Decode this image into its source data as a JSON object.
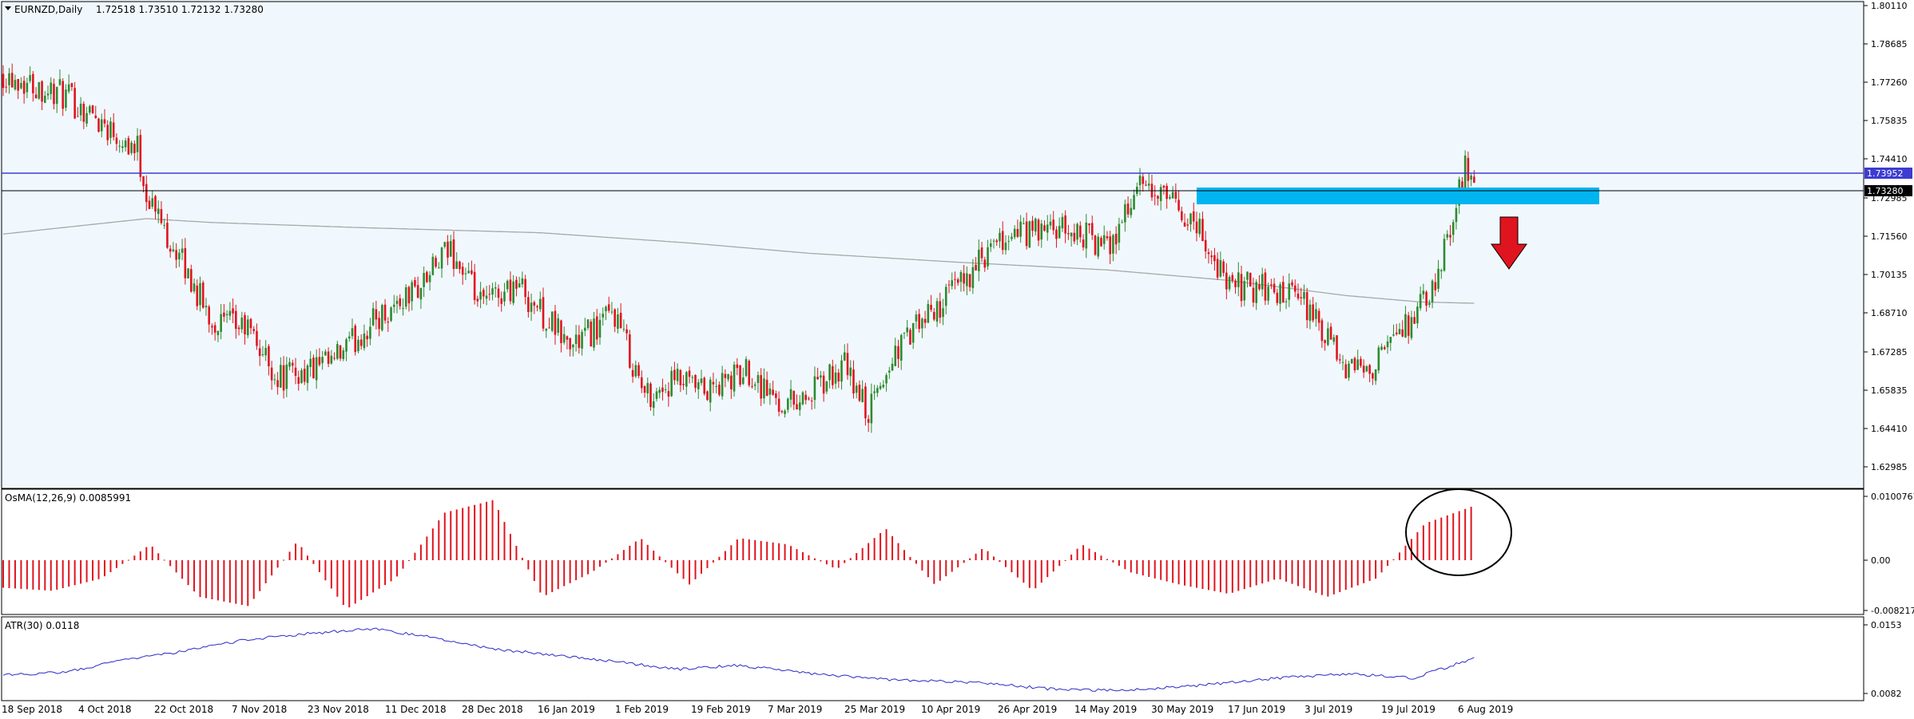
{
  "colors": {
    "background": "#f0f8fe",
    "frame": "#000000",
    "bull": "#2e8b2e",
    "bear": "#e0141e",
    "ma": "#a8a8a8",
    "atr": "#2929c8",
    "osma": "#e0141e",
    "blue_line": "#3c3cd2",
    "zone": "#00b4f0",
    "arrow": "#e0141e"
  },
  "main": {
    "title": "EURNZD,Daily",
    "ohlc": "1.72518 1.73510 1.72132 1.73280",
    "price_min": 1.6212,
    "price_max": 1.8011,
    "price_ticks": [
      "1.80110",
      "1.78685",
      "1.77260",
      "1.75835",
      "1.74410",
      "1.72985",
      "1.71560",
      "1.70135",
      "1.68710",
      "1.67285",
      "1.65835",
      "1.64410",
      "1.62985"
    ],
    "price_tag_blue": "1.73952",
    "price_tag_current": "1.73280"
  },
  "osma": {
    "label": "OsMA(12,26,9) 0.0085991",
    "ticks": [
      "0.0100767",
      "0.00",
      "-0.0082174"
    ],
    "min": -0.0082174,
    "max": 0.0100767
  },
  "atr": {
    "label": "ATR(30) 0.0118",
    "ticks": [
      "0.0153",
      "0.0082"
    ],
    "min": 0.0082,
    "max": 0.0153
  },
  "x_axis": {
    "labels": [
      "18 Sep 2018",
      "4 Oct 2018",
      "22 Oct 2018",
      "7 Nov 2018",
      "23 Nov 2018",
      "11 Dec 2018",
      "28 Dec 2018",
      "16 Jan 2019",
      "1 Feb 2019",
      "19 Feb 2019",
      "7 Mar 2019",
      "25 Mar 2019",
      "10 Apr 2019",
      "26 Apr 2019",
      "14 May 2019",
      "30 May 2019",
      "17 Jun 2019",
      "3 Jul 2019",
      "19 Jul 2019",
      "6 Aug 2019"
    ]
  },
  "chart_data": {
    "type": "candlestick",
    "symbol": "EURNZD",
    "timeframe": "Daily",
    "close_trend": [
      [
        0,
        1.775
      ],
      [
        20,
        1.766
      ],
      [
        32,
        1.757
      ],
      [
        45,
        1.745
      ],
      [
        48,
        1.728
      ],
      [
        58,
        1.705
      ],
      [
        70,
        1.678
      ],
      [
        82,
        1.675
      ],
      [
        92,
        1.656
      ],
      [
        110,
        1.661
      ],
      [
        124,
        1.678
      ],
      [
        140,
        1.692
      ],
      [
        150,
        1.706
      ],
      [
        160,
        1.684
      ],
      [
        172,
        1.693
      ],
      [
        190,
        1.668
      ],
      [
        205,
        1.681
      ],
      [
        215,
        1.649
      ],
      [
        226,
        1.654
      ],
      [
        236,
        1.65
      ],
      [
        250,
        1.659
      ],
      [
        260,
        1.646
      ],
      [
        270,
        1.649
      ],
      [
        282,
        1.66
      ],
      [
        290,
        1.642
      ],
      [
        300,
        1.668
      ],
      [
        312,
        1.682
      ],
      [
        324,
        1.697
      ],
      [
        338,
        1.712
      ],
      [
        352,
        1.713
      ],
      [
        362,
        1.712
      ],
      [
        370,
        1.706
      ],
      [
        380,
        1.73
      ],
      [
        390,
        1.725
      ],
      [
        400,
        1.716
      ],
      [
        410,
        1.692
      ],
      [
        422,
        1.691
      ],
      [
        436,
        1.685
      ],
      [
        446,
        1.666
      ],
      [
        450,
        1.658
      ],
      [
        460,
        1.662
      ],
      [
        470,
        1.676
      ],
      [
        480,
        1.69
      ],
      [
        486,
        1.721
      ],
      [
        490,
        1.737
      ],
      [
        493,
        1.728
      ]
    ],
    "moving_average_trend": [
      [
        0,
        1.712
      ],
      [
        48,
        1.718
      ],
      [
        70,
        1.7165
      ],
      [
        120,
        1.7145
      ],
      [
        180,
        1.7125
      ],
      [
        230,
        1.7085
      ],
      [
        270,
        1.7045
      ],
      [
        320,
        1.701
      ],
      [
        370,
        1.698
      ],
      [
        410,
        1.694
      ],
      [
        450,
        1.688
      ],
      [
        475,
        1.6855
      ],
      [
        493,
        1.685
      ]
    ],
    "osma_values": [
      -0.0045,
      -0.005,
      -0.003,
      0.0025,
      -0.006,
      -0.0075,
      0.003,
      -0.008,
      -0.003,
      0.0075,
      0.0095,
      -0.006,
      -0.002,
      0.0035,
      -0.004,
      0.0035,
      0.0025,
      -0.0015,
      0.005,
      -0.004,
      0.002,
      -0.005,
      0.0025,
      -0.002,
      -0.004,
      -0.0055,
      -0.003,
      -0.006,
      -0.003,
      0.0058,
      0.0086
    ],
    "atr_values": [
      0.0101,
      0.0104,
      0.0117,
      0.0126,
      0.0138,
      0.0144,
      0.0149,
      0.014,
      0.0128,
      0.0122,
      0.0115,
      0.0107,
      0.0111,
      0.0104,
      0.0098,
      0.0095,
      0.0093,
      0.0087,
      0.0085,
      0.0088,
      0.0093,
      0.0099,
      0.0102,
      0.0098,
      0.0118
    ],
    "resistance_zone": [
      1.7295,
      1.734
    ],
    "horizontal_lines": [
      1.73952,
      1.7328
    ],
    "annotation": "bearish arrow below resistance zone; OsMA peak circled"
  }
}
